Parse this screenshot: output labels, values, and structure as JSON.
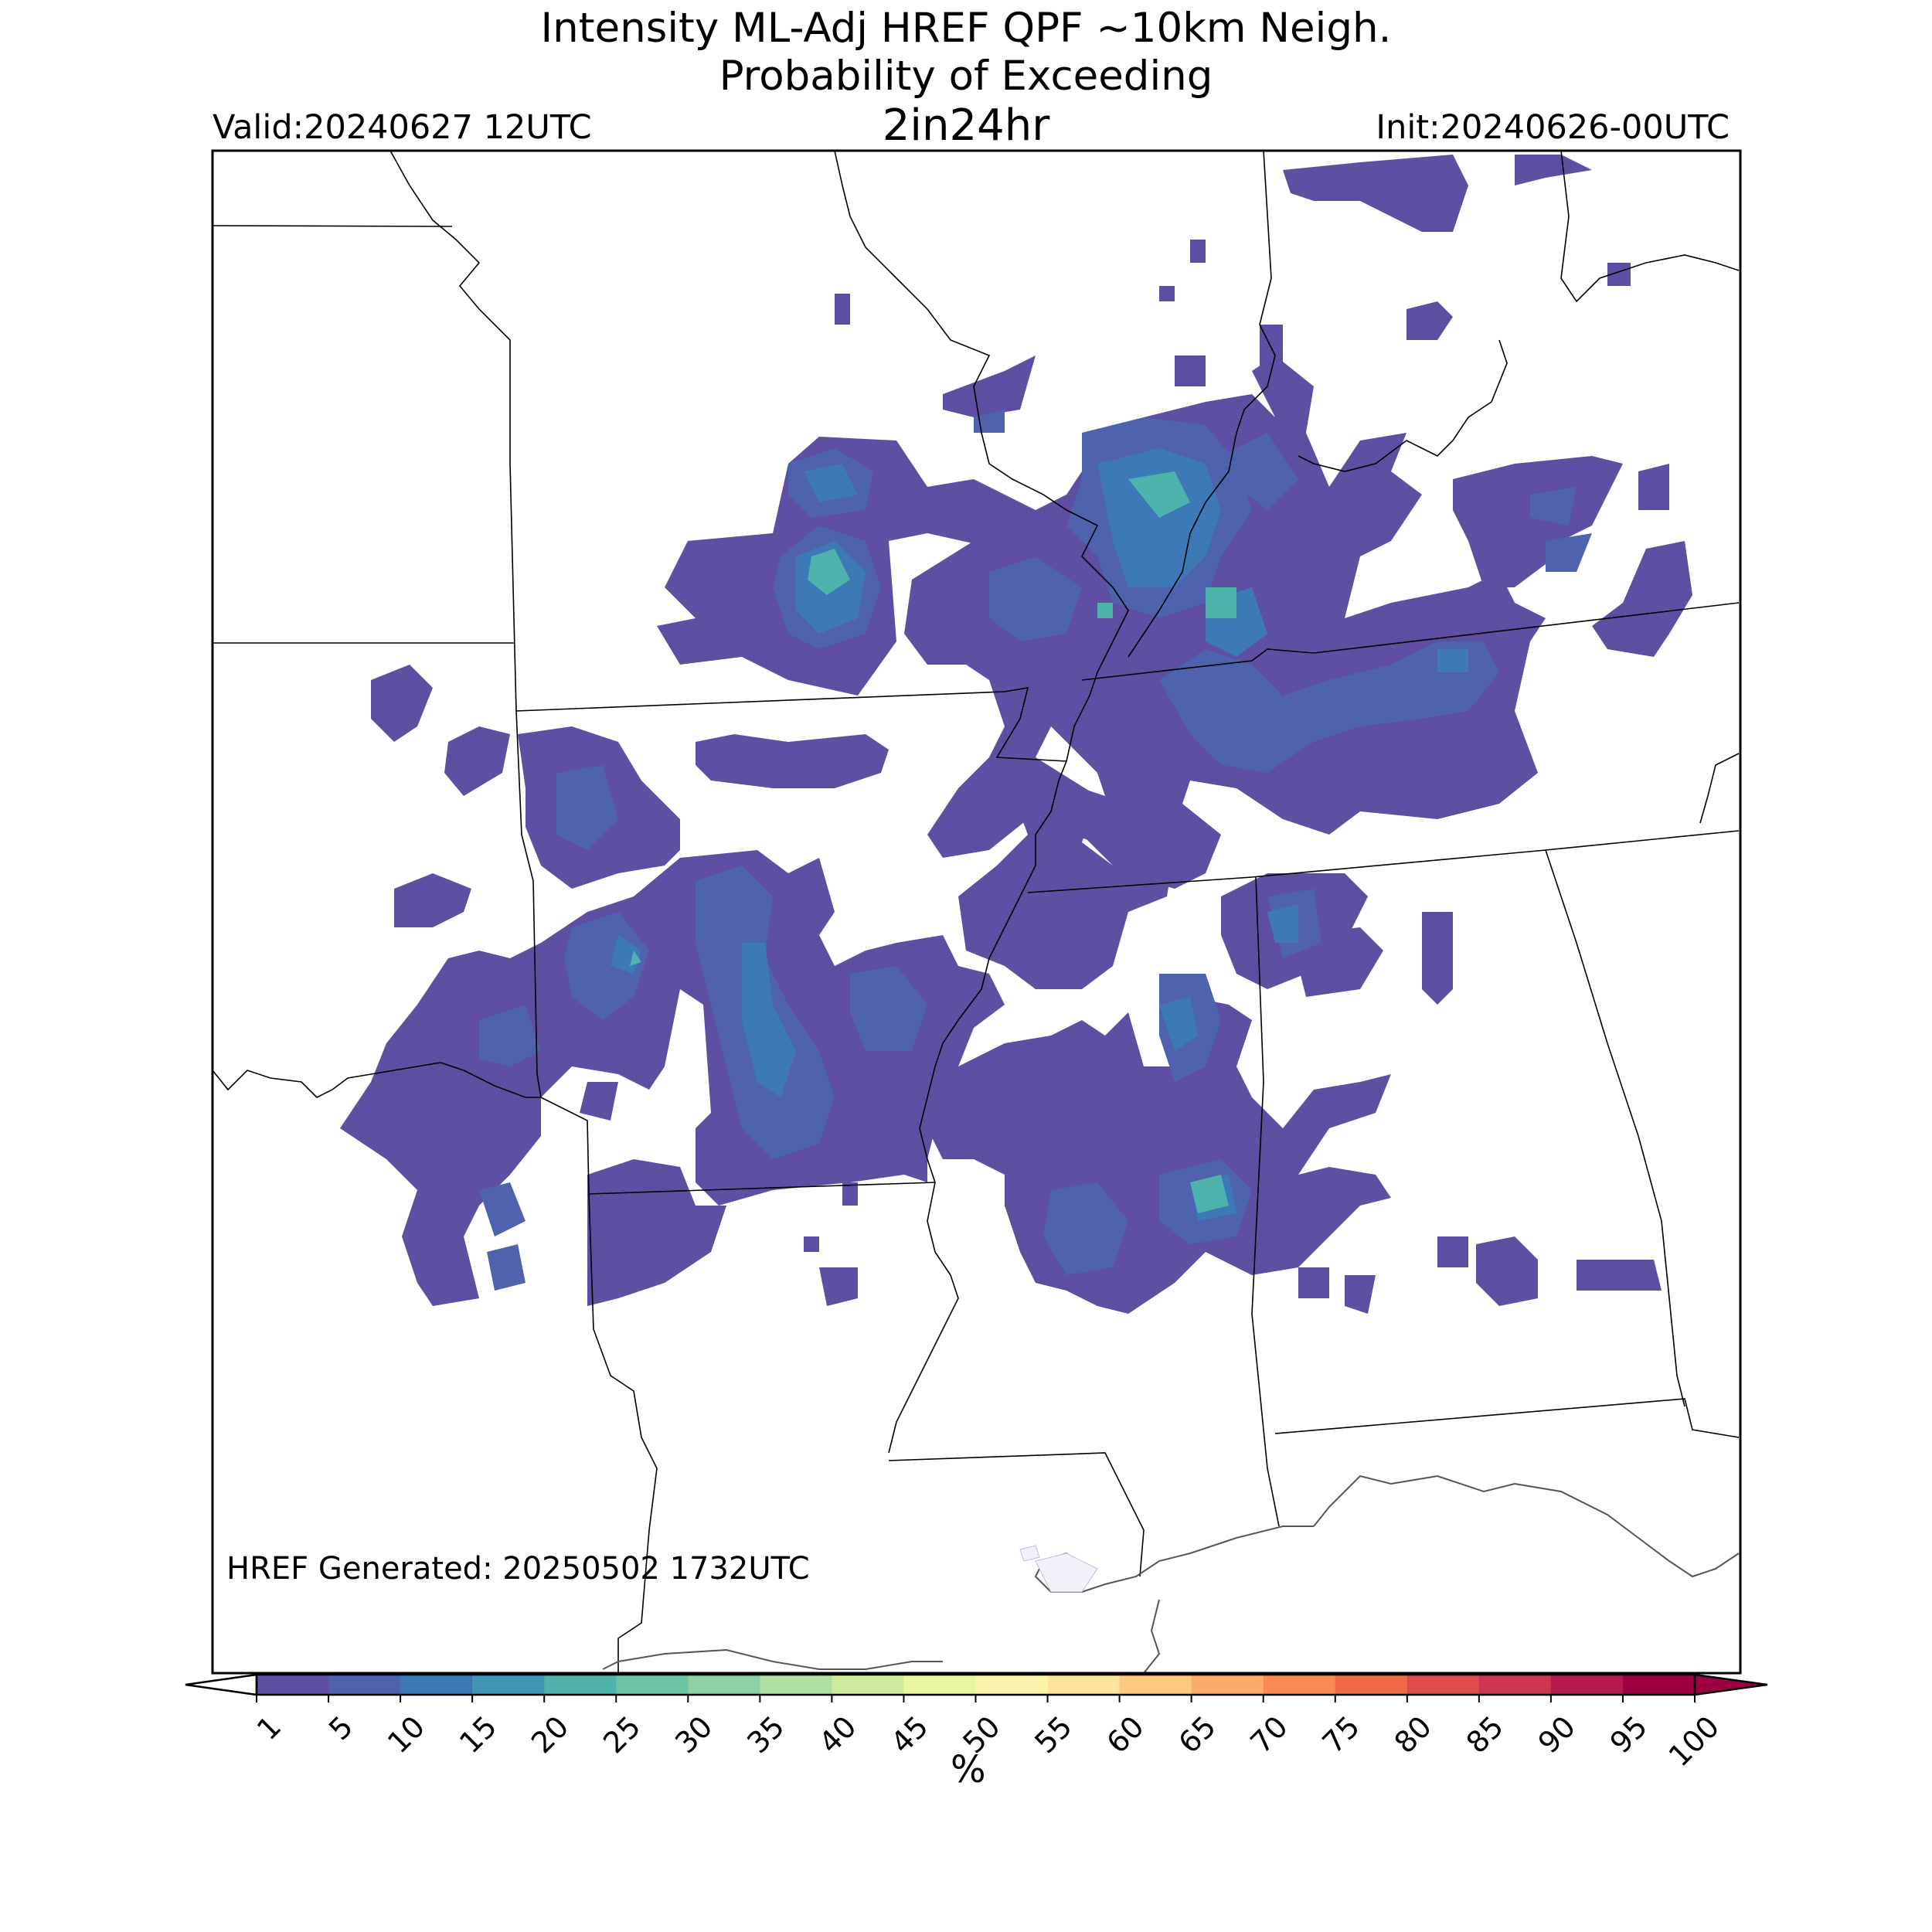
{
  "header": {
    "title_line1": "Intensity ML-Adj HREF QPF ~10km Neigh.",
    "title_line2": "Probability of Exceeding",
    "title_line3": "2in24hr",
    "valid": "Valid:20240627 12UTC",
    "init": "Init:20240626-00UTC"
  },
  "footer": {
    "generated": "HREF Generated: 20250502 1732UTC"
  },
  "colorbar": {
    "unit_label": "%",
    "ticks": [
      "1",
      "5",
      "10",
      "15",
      "20",
      "25",
      "30",
      "35",
      "40",
      "45",
      "50",
      "55",
      "60",
      "65",
      "70",
      "75",
      "80",
      "85",
      "90",
      "95",
      "100"
    ],
    "colors": [
      "#5e4fa2",
      "#4e62ad",
      "#3d79b6",
      "#3f96b7",
      "#4db3ab",
      "#6cc4a4",
      "#8ed0a4",
      "#b0dfa3",
      "#cfeba0",
      "#e8f5a1",
      "#fcf3aa",
      "#fee49a",
      "#fdc980",
      "#fcab68",
      "#f88b53",
      "#ef6b47",
      "#de4c4b",
      "#cc3650",
      "#b31b4c",
      "#9e0142"
    ],
    "under_color": "#ffffff",
    "over_color": "#9e0142"
  },
  "map": {
    "background": "#ffffff",
    "border_color": "#000000",
    "coast_color": "#555555",
    "lake_color": "#eef2f9"
  }
}
